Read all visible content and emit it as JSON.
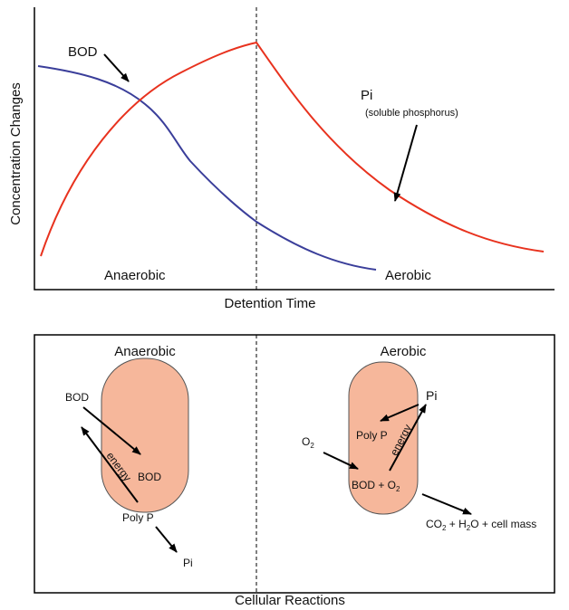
{
  "top_chart": {
    "y_label": "Concentration Changes",
    "x_label": "Detention Time",
    "bod_label": "BOD",
    "pi_label": "Pi",
    "pi_note": "(soluble phosphorus)",
    "anaerobic": "Anaerobic",
    "aerobic": "Aerobic"
  },
  "bottom_diagram": {
    "anaerobic": "Anaerobic",
    "aerobic": "Aerobic",
    "caption": "Cellular Reactions",
    "left_cell": {
      "bod_in": "BOD",
      "energy": "energy",
      "bod_inside": "BOD",
      "poly_p": "Poly P",
      "pi_out": "Pi"
    },
    "right_cell": {
      "pi": "Pi",
      "poly_p": "Poly P",
      "energy": "energy",
      "o2": [
        "O",
        "2"
      ],
      "bod_o2": [
        "BOD + O",
        "2"
      ],
      "products": [
        "CO",
        "2",
        " + H",
        "2",
        "O + cell mass"
      ]
    }
  }
}
